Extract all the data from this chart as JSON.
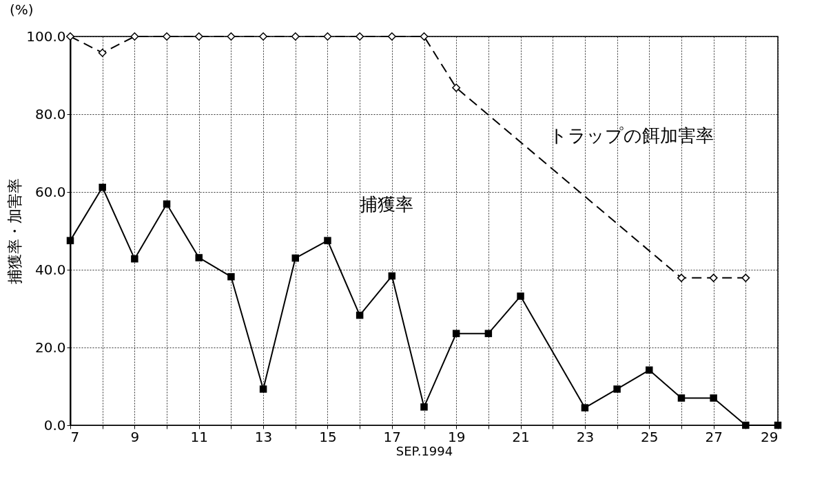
{
  "chart_data": {
    "type": "line",
    "xlabel": "SEP.1994",
    "ylabel": "捕獲率・加害率",
    "annotations": [
      "(%)"
    ],
    "xlim": [
      7,
      29
    ],
    "ylim": [
      0,
      100
    ],
    "xticks": [
      7,
      {
        "value": 8,
        "label": null
      },
      9,
      {
        "value": 10,
        "label": null
      },
      11,
      {
        "value": 12,
        "label": null
      },
      13,
      {
        "value": 14,
        "label": null
      },
      15,
      {
        "value": 16,
        "label": null
      },
      17,
      {
        "value": 18,
        "label": null
      },
      19,
      {
        "value": 20,
        "label": null
      },
      21,
      {
        "value": 22,
        "label": null
      },
      23,
      {
        "value": 24,
        "label": null
      },
      25,
      {
        "value": 26,
        "label": null
      },
      27,
      {
        "value": 28,
        "label": null
      },
      29
    ],
    "yticks": [
      {
        "value": 0,
        "label": "0.0"
      },
      {
        "value": 20,
        "label": "20.0"
      },
      {
        "value": 40,
        "label": "40.0"
      },
      {
        "value": 60,
        "label": "60.0"
      },
      {
        "value": 80,
        "label": "80.0"
      },
      {
        "value": 100,
        "label": "100.0"
      }
    ],
    "grid": true,
    "series": [
      {
        "name": "捕獲率",
        "color": "#000000",
        "marker": "square",
        "line_style": "solid",
        "x": [
          7,
          8,
          9,
          10,
          11,
          12,
          13,
          14,
          15,
          16,
          17,
          18,
          19,
          20,
          21,
          23,
          24,
          25,
          26,
          27,
          28,
          29
        ],
        "values": [
          47.5,
          61.2,
          42.8,
          56.9,
          43.1,
          38.2,
          9.3,
          43.0,
          47.5,
          28.3,
          38.4,
          4.7,
          23.6,
          23.6,
          33.2,
          4.5,
          9.3,
          14.2,
          7.0,
          7.0,
          0,
          0
        ]
      },
      {
        "name": "トラップの餌加害率",
        "color": "#000000",
        "marker": "diamond",
        "line_style": "dashed",
        "x": [
          7,
          8,
          9,
          10,
          11,
          12,
          13,
          14,
          15,
          16,
          17,
          18,
          19,
          26,
          27,
          28
        ],
        "values": [
          100,
          95.8,
          100,
          100,
          100,
          100,
          100,
          100,
          100,
          100,
          100,
          100,
          86.8,
          37.9,
          37.9,
          37.9
        ]
      }
    ]
  }
}
